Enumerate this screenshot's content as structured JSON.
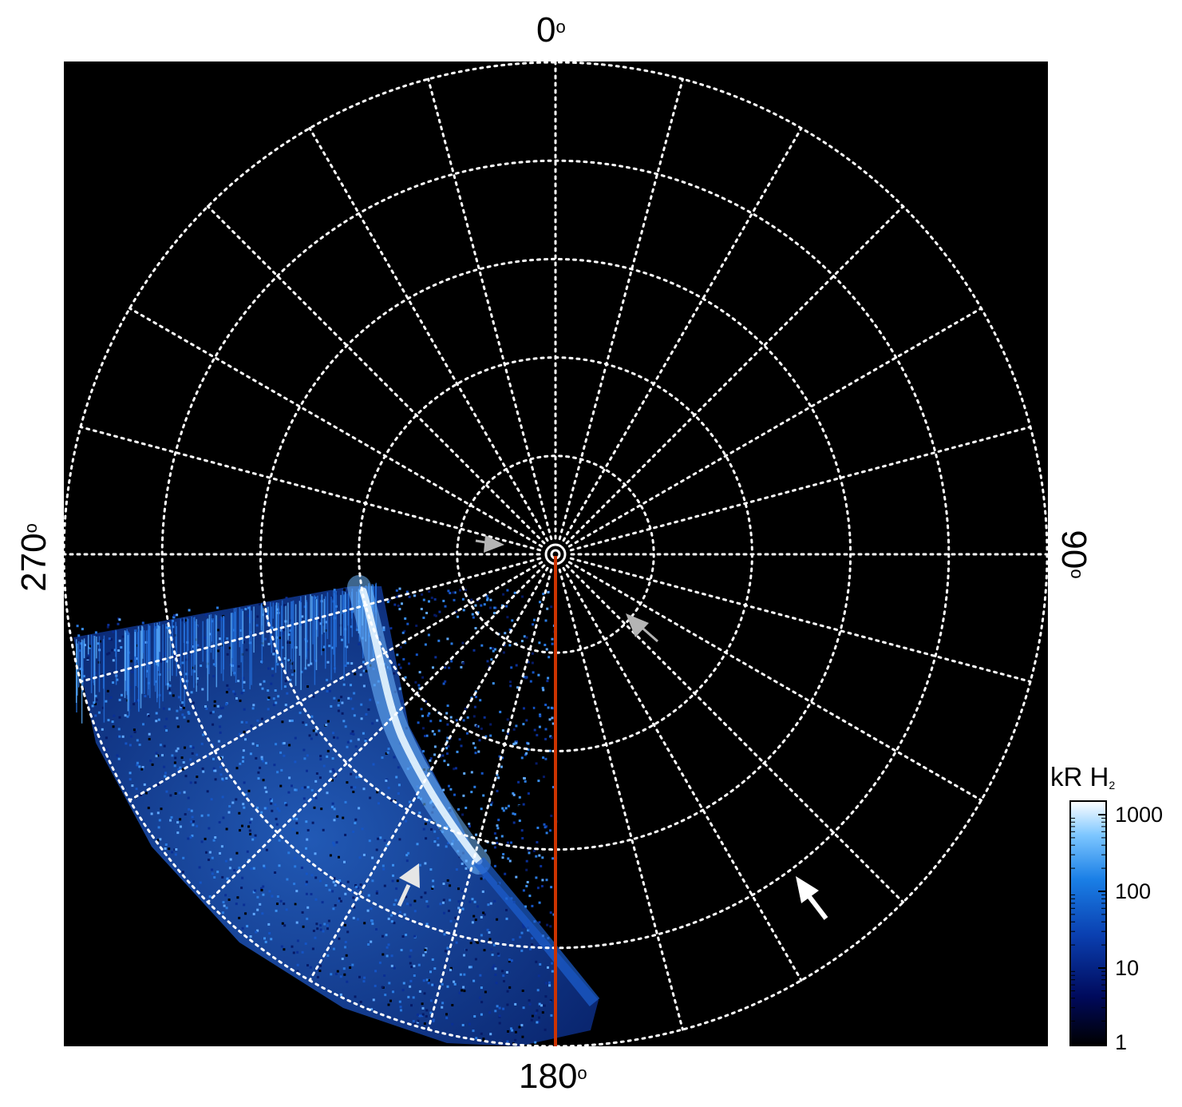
{
  "figure": {
    "azimuth_labels": {
      "top": "0",
      "right": "90",
      "bottom": "180",
      "left": "270",
      "degree_symbol": "o"
    },
    "grid": {
      "style": "dotted",
      "color": "#ffffff",
      "ring_count": 5,
      "spoke_spacing_deg": 15
    },
    "plot_background": "#000000",
    "meridian_line_color": "#cc3300",
    "colorbar": {
      "title_main": "kR H",
      "title_subscript": "2",
      "scale": "log",
      "ticks": [
        "1000",
        "100",
        "10",
        "1"
      ],
      "colors": [
        "#000000",
        "#000a5c",
        "#0a3fb0",
        "#1a7fe6",
        "#7cc6ff",
        "#ffffff"
      ]
    },
    "arrows": [
      {
        "color": "#b4b4b4",
        "name": "gray-arrow-upper-left"
      },
      {
        "color": "#b4b4b4",
        "name": "gray-arrow-right-center"
      },
      {
        "color": "#e6e6e6",
        "name": "light-arrow-lower-left"
      },
      {
        "color": "#ffffff",
        "name": "white-arrow-lower-right"
      }
    ]
  }
}
